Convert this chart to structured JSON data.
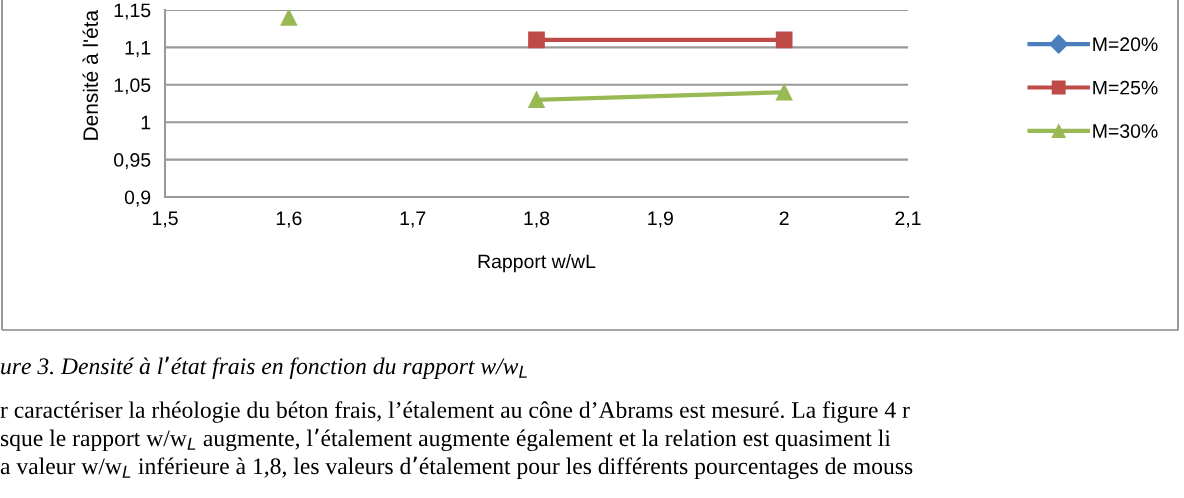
{
  "chart_data": {
    "type": "line",
    "ylabel": "Densité à l'éta",
    "xlabel": "Rapport w/wL",
    "xlim": [
      1.5,
      2.1
    ],
    "xticks": [
      {
        "value": 1.5,
        "label": "1,5"
      },
      {
        "value": 1.6,
        "label": "1,6"
      },
      {
        "value": 1.7,
        "label": "1,7"
      },
      {
        "value": 1.8,
        "label": "1,8"
      },
      {
        "value": 1.9,
        "label": "1,9"
      },
      2,
      {
        "value": 2.1,
        "label": "2,1"
      }
    ],
    "ylim": [
      0.9,
      1.15
    ],
    "yticks": [
      {
        "value": 0.9,
        "label": "0,9"
      },
      {
        "value": 0.95,
        "label": "0,95"
      },
      1,
      {
        "value": 1.05,
        "label": "1,05"
      },
      {
        "value": 1.1,
        "label": "1,1"
      },
      {
        "value": 1.15,
        "label": "1,15"
      }
    ],
    "grid": "y",
    "legend": "right",
    "line_style": "solid",
    "series": [
      {
        "name": "M=20%",
        "color": "#4a7ebb",
        "marker": "diamond"
      },
      {
        "name": "M=25%",
        "color": "#be4b48",
        "marker": "square",
        "x": [
          1.8,
          2.0
        ],
        "values": [
          1.11,
          1.11
        ]
      },
      {
        "name": "M=30%",
        "color": "#98b954",
        "marker": "triangle",
        "x": [
          1.6,
          1.7,
          1.8,
          2.0
        ],
        "values": [
          1.14,
          null,
          1.03,
          1.04
        ]
      }
    ],
    "annotations": [
      "ure 3. Densité à l’état frais en fonction du rapport w/w$_{L}$",
      "r caractériser la rhéologie du béton frais, l’étalement au cône d’Abrams est mesuré. La figure 4 r",
      "sque le rapport w/w$_{L}$ augmente, l’étalement augmente également et la relation est quasiment li",
      "a valeur w/w$_{L}$ inférieure à 1,8, les valeurs d’étalement pour les différents pourcentages de mouss"
    ]
  }
}
